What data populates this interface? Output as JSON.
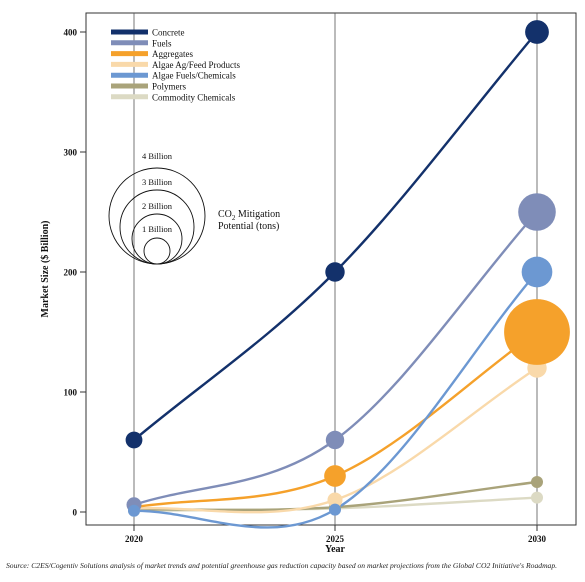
{
  "chart_data": {
    "type": "bubble-line",
    "xlabel": "Year",
    "ylabel": "Market Size ($ Billion)",
    "x": [
      2020,
      2025,
      2030
    ],
    "xticks": [
      "2020",
      "2025",
      "2030"
    ],
    "yticks": [
      "0",
      "100",
      "200",
      "300",
      "400"
    ],
    "ylim": [
      0,
      420
    ],
    "grid": "vertical lines at each year",
    "legend_position": "top-left",
    "series": [
      {
        "name": "Concrete",
        "color": "#13316b",
        "values": [
          60,
          200,
          400
        ],
        "bubble_billion_tons": [
          0.15,
          0.2,
          0.3
        ]
      },
      {
        "name": "Fuels",
        "color": "#7f8db8",
        "values": [
          6,
          60,
          250
        ],
        "bubble_billion_tons": [
          0.12,
          0.18,
          0.75
        ]
      },
      {
        "name": "Aggregates",
        "color": "#f5a12b",
        "values": [
          4,
          30,
          150
        ],
        "bubble_billion_tons": [
          0.05,
          0.25,
          2.3
        ]
      },
      {
        "name": "Algae Ag/Feed Products",
        "color": "#f9d9aa",
        "values": [
          3,
          10,
          120
        ],
        "bubble_billion_tons": [
          0.05,
          0.12,
          0.2
        ]
      },
      {
        "name": "Algae Fuels/Chemicals",
        "color": "#6c98d2",
        "values": [
          1,
          2,
          200
        ],
        "bubble_billion_tons": [
          0.05,
          0.05,
          0.5
        ]
      },
      {
        "name": "Polymers",
        "color": "#a9a37a",
        "values": [
          2,
          4,
          25
        ],
        "bubble_billion_tons": [
          0.05,
          0.05,
          0.06
        ]
      },
      {
        "name": "Commodity Chemicals",
        "color": "#dcdac4",
        "values": [
          1,
          3,
          12
        ],
        "bubble_billion_tons": [
          0.05,
          0.05,
          0.06
        ]
      }
    ],
    "size_legend": {
      "circles": [
        "4 Billion",
        "3 Billion",
        "2 Billion",
        "1 Billion"
      ],
      "title_prefix": "CO",
      "title_sub": "2",
      "title_suffix": " Mitigation",
      "title_line2": "Potential (tons)"
    }
  },
  "source": "Source: C2ES/Cogentiv Solutions analysis of market trends and potential greenhouse gas reduction capacity based on market projections from the Global CO2 Initiative's Roadmap."
}
